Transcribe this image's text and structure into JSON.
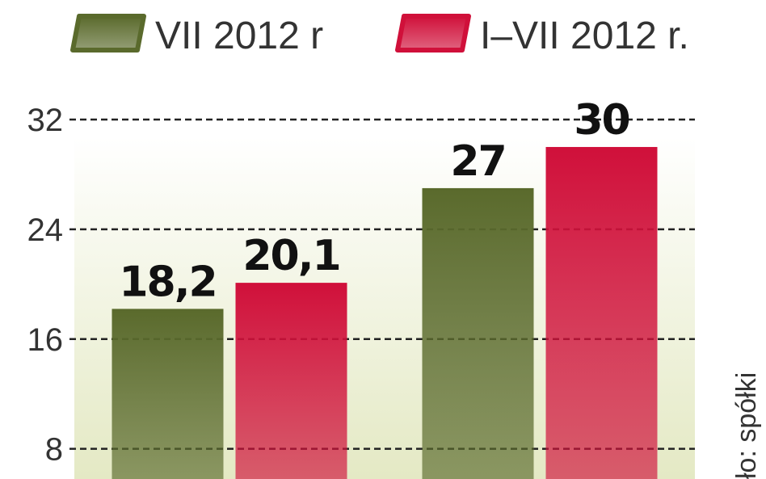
{
  "chart_data": {
    "type": "bar",
    "categories": [
      null,
      null
    ],
    "series": [
      {
        "name": "VII 2012 r",
        "color": "#5a6a2c",
        "values": [
          18.2,
          27
        ],
        "value_labels": [
          "18,2",
          "27"
        ]
      },
      {
        "name": "I–VII 2012 r.",
        "color": "#d0103a",
        "values": [
          20.1,
          30
        ],
        "value_labels": [
          "20,1",
          "30"
        ]
      }
    ],
    "ylim": [
      5.8,
      32
    ],
    "yticks": [
      8,
      16,
      24,
      32
    ],
    "grid": true,
    "source": "ło: spółki"
  }
}
